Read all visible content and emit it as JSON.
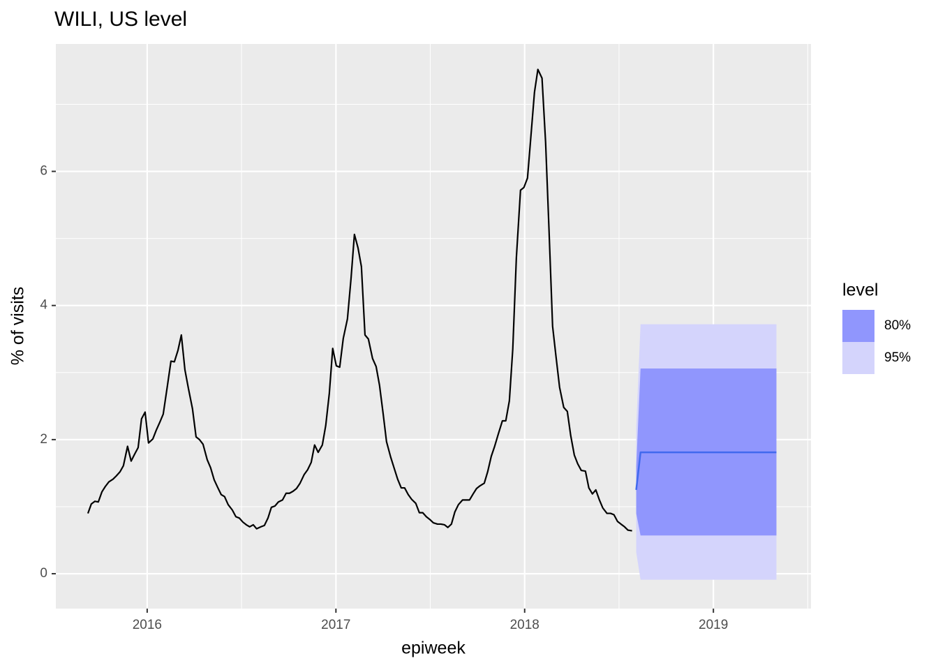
{
  "chart_data": {
    "type": "line",
    "title": "WILI, US level",
    "xlabel": "epiweek",
    "ylabel": "% of visits",
    "xlim": [
      2015.516,
      2019.517
    ],
    "ylim": [
      -0.52,
      7.9
    ],
    "xticks": [
      2016,
      2017,
      2018,
      2019
    ],
    "yticks": [
      0,
      2,
      4,
      6
    ],
    "grid": true,
    "x": [
      2015.686,
      2015.704,
      2015.723,
      2015.741,
      2015.76,
      2015.778,
      2015.797,
      2015.819,
      2015.837,
      2015.856,
      2015.874,
      2015.896,
      2015.915,
      2015.933,
      2015.952,
      2015.97,
      2015.989,
      2016.007,
      2016.03,
      2016.048,
      2016.067,
      2016.085,
      2016.107,
      2016.126,
      2016.144,
      2016.163,
      2016.181,
      2016.2,
      2016.218,
      2016.24,
      2016.259,
      2016.277,
      2016.296,
      2016.318,
      2016.336,
      2016.355,
      2016.373,
      2016.392,
      2016.41,
      2016.429,
      2016.451,
      2016.47,
      2016.488,
      2016.507,
      2016.525,
      2016.543,
      2016.562,
      2016.58,
      2016.603,
      2016.621,
      2016.64,
      2016.658,
      2016.677,
      2016.695,
      2016.717,
      2016.736,
      2016.754,
      2016.773,
      2016.791,
      2016.81,
      2016.832,
      2016.85,
      2016.869,
      2016.887,
      2016.906,
      2016.928,
      2016.946,
      2016.965,
      2016.983,
      2017.002,
      2017.02,
      2017.039,
      2017.061,
      2017.08,
      2017.098,
      2017.117,
      2017.135,
      2017.154,
      2017.172,
      2017.194,
      2017.213,
      2017.231,
      2017.25,
      2017.268,
      2017.29,
      2017.309,
      2017.327,
      2017.346,
      2017.364,
      2017.383,
      2017.401,
      2017.423,
      2017.442,
      2017.46,
      2017.479,
      2017.497,
      2017.516,
      2017.538,
      2017.556,
      2017.575,
      2017.593,
      2017.612,
      2017.63,
      2017.649,
      2017.671,
      2017.69,
      2017.708,
      2017.727,
      2017.745,
      2017.763,
      2017.786,
      2017.804,
      2017.823,
      2017.841,
      2017.86,
      2017.882,
      2017.9,
      2017.919,
      2017.937,
      2017.956,
      2017.978,
      2017.996,
      2018.015,
      2018.033,
      2018.052,
      2018.07,
      2018.092,
      2018.111,
      2018.129,
      2018.148,
      2018.166,
      2018.185,
      2018.207,
      2018.226,
      2018.244,
      2018.263,
      2018.281,
      2018.3,
      2018.322,
      2018.34,
      2018.359,
      2018.377,
      2018.396,
      2018.414,
      2018.436,
      2018.455,
      2018.473,
      2018.492,
      2018.51,
      2018.529,
      2018.547,
      2018.569
    ],
    "series": [
      {
        "color": "#000000",
        "values": [
          0.9,
          1.04,
          1.08,
          1.07,
          1.22,
          1.3,
          1.37,
          1.41,
          1.46,
          1.52,
          1.61,
          1.9,
          1.68,
          1.78,
          1.88,
          2.31,
          2.41,
          1.95,
          2.01,
          2.14,
          2.26,
          2.38,
          2.8,
          3.17,
          3.16,
          3.33,
          3.56,
          3.04,
          2.77,
          2.46,
          2.04,
          2.0,
          1.93,
          1.7,
          1.58,
          1.4,
          1.29,
          1.18,
          1.15,
          1.03,
          0.95,
          0.85,
          0.83,
          0.77,
          0.73,
          0.7,
          0.73,
          0.67,
          0.7,
          0.72,
          0.83,
          0.99,
          1.01,
          1.07,
          1.1,
          1.2,
          1.2,
          1.23,
          1.27,
          1.35,
          1.48,
          1.55,
          1.66,
          1.92,
          1.81,
          1.92,
          2.21,
          2.69,
          3.36,
          3.1,
          3.08,
          3.51,
          3.8,
          4.4,
          5.06,
          4.86,
          4.58,
          3.56,
          3.5,
          3.21,
          3.09,
          2.81,
          2.39,
          1.97,
          1.74,
          1.57,
          1.41,
          1.28,
          1.28,
          1.18,
          1.11,
          1.05,
          0.91,
          0.91,
          0.85,
          0.81,
          0.76,
          0.74,
          0.74,
          0.73,
          0.69,
          0.74,
          0.92,
          1.03,
          1.1,
          1.1,
          1.1,
          1.19,
          1.27,
          1.31,
          1.35,
          1.52,
          1.75,
          1.9,
          2.08,
          2.28,
          2.28,
          2.58,
          3.35,
          4.71,
          5.72,
          5.76,
          5.9,
          6.52,
          7.18,
          7.52,
          7.39,
          6.43,
          5.13,
          3.69,
          3.24,
          2.78,
          2.48,
          2.42,
          2.06,
          1.77,
          1.64,
          1.54,
          1.53,
          1.28,
          1.19,
          1.25,
          1.1,
          0.98,
          0.9,
          0.9,
          0.88,
          0.78,
          0.74,
          0.7,
          0.65,
          0.64
        ]
      }
    ],
    "forecast": {
      "x": [
        2018.591,
        2018.614,
        2019.334
      ],
      "color": "#4169ee",
      "values": [
        1.25,
        1.81,
        1.81
      ],
      "intervals": [
        {
          "name": "95%",
          "color": "#d4d4fc",
          "lower": [
            0.32,
            -0.09,
            -0.09
          ],
          "upper": [
            2.18,
            3.72,
            3.72
          ]
        },
        {
          "name": "80%",
          "color": "#9096fd",
          "lower": [
            0.9,
            0.57,
            0.57
          ],
          "upper": [
            1.6,
            3.06,
            3.06
          ]
        }
      ]
    },
    "legend_title": "level"
  }
}
